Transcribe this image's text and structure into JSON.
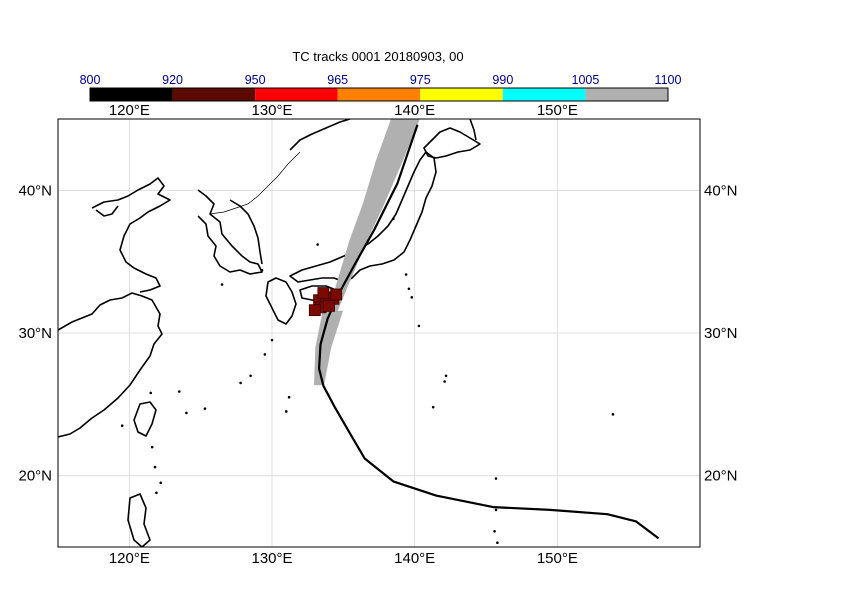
{
  "title": "TC tracks  0001 20180903, 00",
  "colorbar": {
    "labels": [
      "800",
      "920",
      "950",
      "965",
      "975",
      "990",
      "1005",
      "1100"
    ],
    "colors": [
      "#000000",
      "#5a0a00",
      "#ff0000",
      "#ff8000",
      "#ffff00",
      "#00ffff",
      "#b0b0b0"
    ]
  },
  "axes": {
    "lon_ticks": [
      "120°E",
      "130°E",
      "140°E",
      "150°E"
    ],
    "lat_ticks": [
      "40°N",
      "30°N",
      "20°N"
    ],
    "lon_range": [
      115,
      160
    ],
    "lat_range": [
      15,
      45
    ],
    "grid": true
  },
  "colors": {
    "ensemble_track": "#b0b0b0",
    "best_track": "#000000",
    "marker_fill": "#7a0a00",
    "coastline": "#000000",
    "grid": "#d8d8d8"
  },
  "chart_data": {
    "type": "map",
    "title": "TC tracks  0001 20180903, 00",
    "best_track": {
      "lon": [
        157.1,
        155.5,
        153.5,
        149.5,
        145.5,
        141.5,
        138.5,
        136.5,
        135.5,
        134.4,
        133.6,
        133.3,
        133.4,
        133.9,
        134.7,
        135.8,
        137.2,
        138.8,
        140.2
      ],
      "lat": [
        15.6,
        16.8,
        17.3,
        17.6,
        17.8,
        18.6,
        19.6,
        21.2,
        22.9,
        24.8,
        26.3,
        27.5,
        29.2,
        31.0,
        32.8,
        34.8,
        37.3,
        40.5,
        44.6
      ]
    },
    "ensemble_envelope": {
      "lon_west": [
        133.0,
        133.1,
        133.6,
        134.4,
        135.2,
        136.2,
        137.2,
        138.4
      ],
      "lon_east": [
        133.6,
        134.1,
        134.9,
        135.9,
        136.9,
        138.0,
        139.2,
        140.3
      ],
      "lat": [
        26.4,
        29.0,
        31.5,
        34.0,
        36.5,
        39.0,
        42.0,
        45.0
      ]
    },
    "landfall_markers": {
      "lon": [
        133.3,
        133.8,
        134.3,
        133.4,
        134.0,
        133.0,
        134.5,
        133.6
      ],
      "lat": [
        32.3,
        32.5,
        32.4,
        31.8,
        31.9,
        31.6,
        32.7,
        32.8
      ],
      "pressure_class": "920-950"
    }
  }
}
